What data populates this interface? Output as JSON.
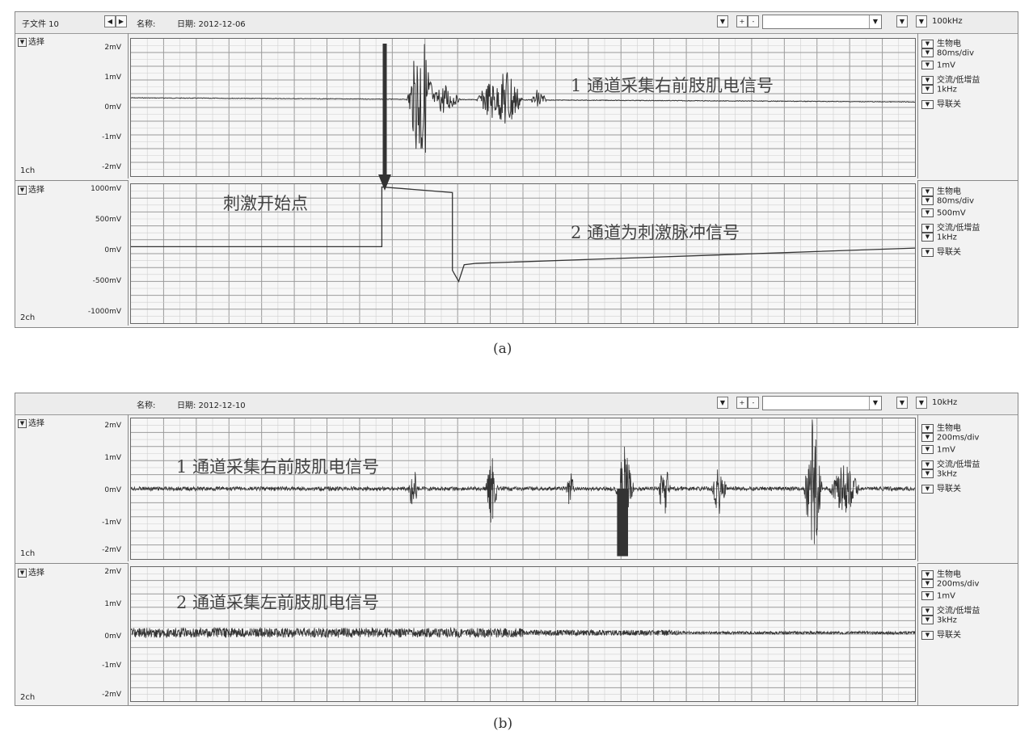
{
  "a": {
    "toolbar": {
      "subfile": "子文件 10",
      "name_label": "名称:",
      "date": "日期: 2012-12-06",
      "sample_rate": "100kHz"
    },
    "ch1": {
      "select": "选择",
      "name": "1ch",
      "yticks": [
        "2mV",
        "1mV",
        "0mV",
        "-1mV",
        "-2mV"
      ],
      "label": "1 通道采集右前肢肌电信号",
      "options": [
        "生物电",
        "80ms/div",
        "1mV",
        "交流/低增益",
        "1kHz",
        "导联关"
      ]
    },
    "ch2": {
      "select": "选择",
      "name": "2ch",
      "yticks": [
        "1000mV",
        "500mV",
        "0mV",
        "-500mV",
        "-1000mV"
      ],
      "label": "2 通道为刺激脉冲信号",
      "annotation": "刺激开始点",
      "options": [
        "生物电",
        "80ms/div",
        "500mV",
        "交流/低增益",
        "1kHz",
        "导联关"
      ]
    },
    "caption": "(a)"
  },
  "b": {
    "toolbar": {
      "name_label": "名称:",
      "date": "日期: 2012-12-10",
      "sample_rate": "10kHz"
    },
    "ch1": {
      "select": "选择",
      "name": "1ch",
      "yticks": [
        "2mV",
        "1mV",
        "0mV",
        "-1mV",
        "-2mV"
      ],
      "label": "1 通道采集右前肢肌电信号",
      "options": [
        "生物电",
        "200ms/div",
        "1mV",
        "交流/低增益",
        "3kHz",
        "导联关"
      ]
    },
    "ch2": {
      "select": "选择",
      "name": "2ch",
      "yticks": [
        "2mV",
        "1mV",
        "0mV",
        "-1mV",
        "-2mV"
      ],
      "label": "2 通道采集左前肢肌电信号",
      "options": [
        "生物电",
        "200ms/div",
        "1mV",
        "交流/低增益",
        "3kHz",
        "导联关"
      ]
    },
    "caption": "(b)"
  },
  "colors": {
    "grid": "#9a9a9a",
    "grid_minor": "#cfcfcf",
    "trace": "#333333",
    "plot_bg": "#f7f7f7"
  }
}
